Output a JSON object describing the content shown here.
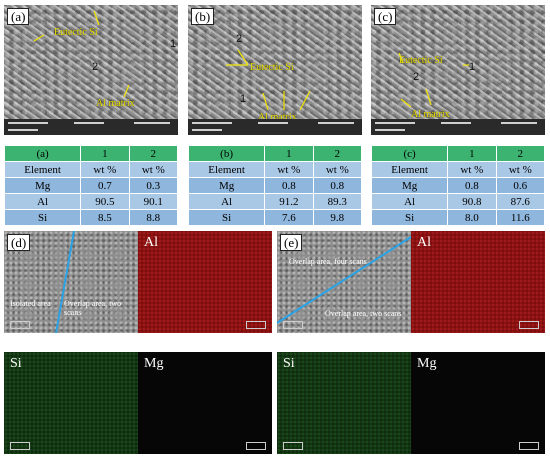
{
  "panels": {
    "a": {
      "label": "(a)",
      "annotations": {
        "eutectic": "Eutectic Si",
        "matrix": "Al matrix",
        "p1": "1",
        "p2": "2"
      },
      "table": {
        "header": [
          "(a)",
          "1",
          "2"
        ],
        "rows": [
          [
            "Element",
            "wt %",
            "wt %"
          ],
          [
            "Mg",
            "0.7",
            "0.3"
          ],
          [
            "Al",
            "90.5",
            "90.1"
          ],
          [
            "Si",
            "8.5",
            "8.8"
          ]
        ]
      }
    },
    "b": {
      "label": "(b)",
      "annotations": {
        "eutectic": "Eutectic Si",
        "matrix": "Al matrix",
        "p1": "1",
        "p2": "2"
      },
      "table": {
        "header": [
          "(b)",
          "1",
          "2"
        ],
        "rows": [
          [
            "Element",
            "wt %",
            "wt %"
          ],
          [
            "Mg",
            "0.8",
            "0.8"
          ],
          [
            "Al",
            "91.2",
            "89.3"
          ],
          [
            "Si",
            "7.6",
            "9.8"
          ]
        ]
      }
    },
    "c": {
      "label": "(c)",
      "annotations": {
        "eutectic": "Eutectic Si",
        "matrix": "Al matrix",
        "p1": "1",
        "p2": "2"
      },
      "table": {
        "header": [
          "(c)",
          "1",
          "2"
        ],
        "rows": [
          [
            "Element",
            "wt %",
            "wt %"
          ],
          [
            "Mg",
            "0.8",
            "0.6"
          ],
          [
            "Al",
            "90.8",
            "87.6"
          ],
          [
            "Si",
            "8.0",
            "11.6"
          ]
        ]
      }
    },
    "d": {
      "label": "(d)",
      "isolated": "Isolated area",
      "overlap": "Overlap area, two scans",
      "maps": {
        "al": "Al",
        "si": "Si",
        "mg": "Mg"
      }
    },
    "e": {
      "label": "(e)",
      "overlap4": "Overlap area, four scans",
      "overlap2": "Overlap area, two scans",
      "maps": {
        "al": "Al",
        "si": "Si",
        "mg": "Mg"
      }
    }
  },
  "colors": {
    "header_green": "#3cb371",
    "row_light": "#a9c8e6",
    "row_dark": "#8fb6dc",
    "annotation_yellow": "#f2e600",
    "scan_line": "#2aa3e6"
  }
}
